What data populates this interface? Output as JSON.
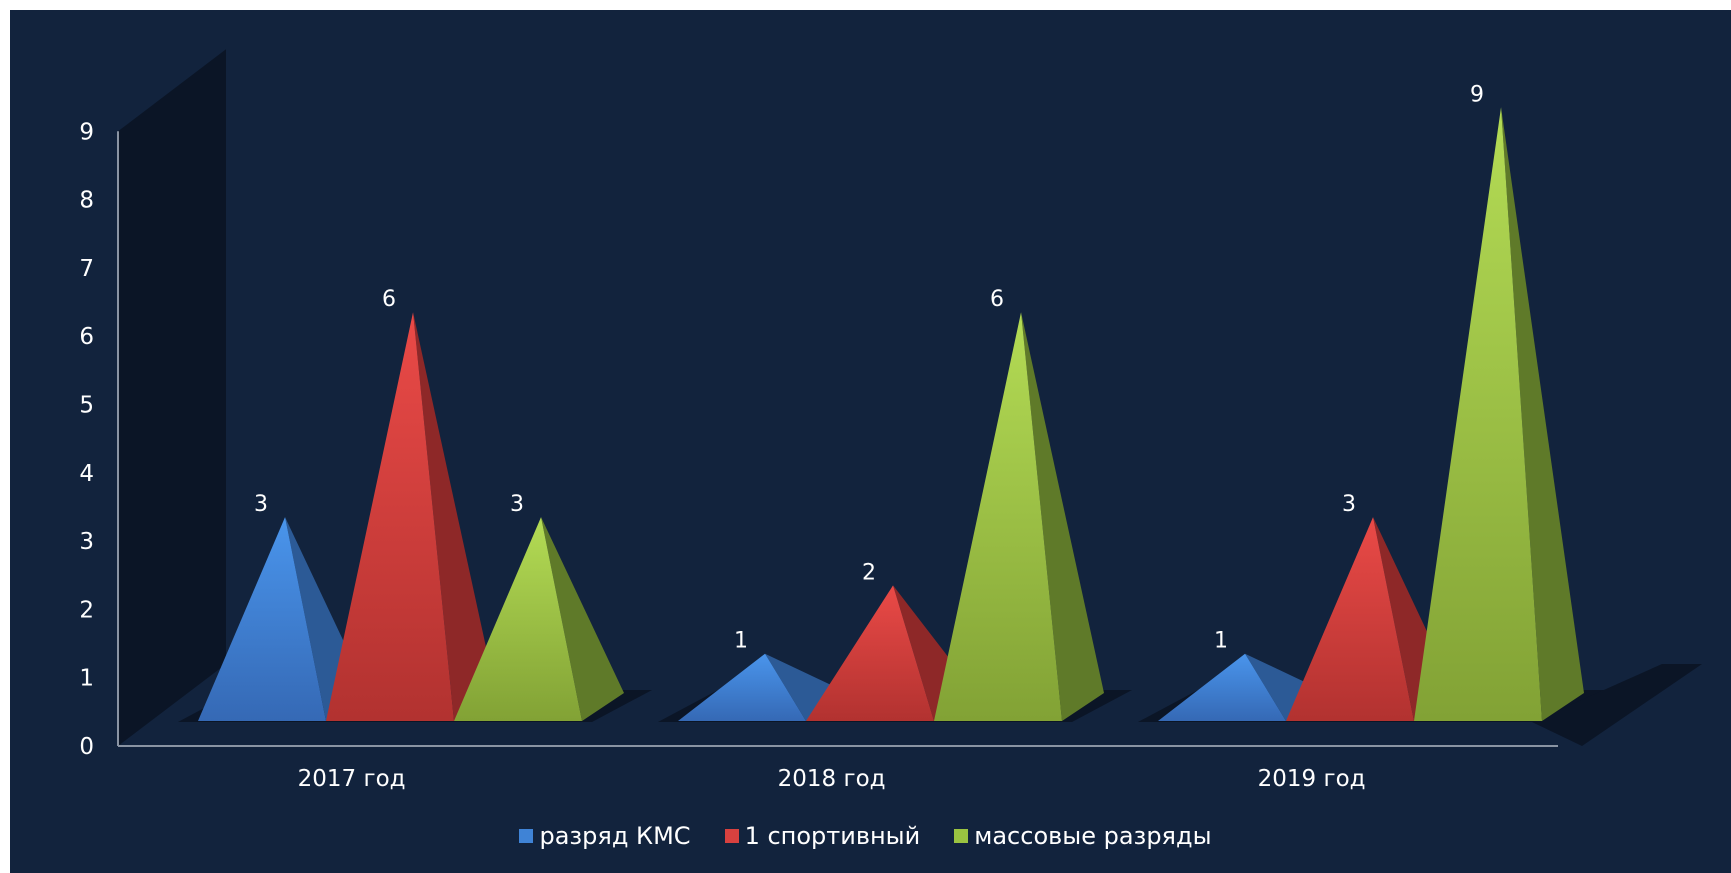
{
  "chart_data": {
    "type": "bar",
    "shape": "3d-pyramid",
    "categories": [
      "2017 год",
      "2018 год",
      "2019 год"
    ],
    "series": [
      {
        "name": "разряд КМС",
        "values": [
          3,
          1,
          1
        ],
        "color": "#3f83d6",
        "label_color": "#ffffff"
      },
      {
        "name": "1 спортивный",
        "values": [
          6,
          2,
          3
        ],
        "color": "#d8413f",
        "label_color": "#ffffff"
      },
      {
        "name": "массовые разряды",
        "values": [
          3,
          6,
          9
        ],
        "color": "#9ac341",
        "label_color": "#ffffff"
      }
    ],
    "ylim": [
      0,
      9
    ],
    "yticks": [
      "0",
      "1",
      "2",
      "3",
      "4",
      "5",
      "6",
      "7",
      "8",
      "9"
    ],
    "data_labels": true,
    "grid": false,
    "legend": "bottom",
    "background": "#12233d"
  }
}
